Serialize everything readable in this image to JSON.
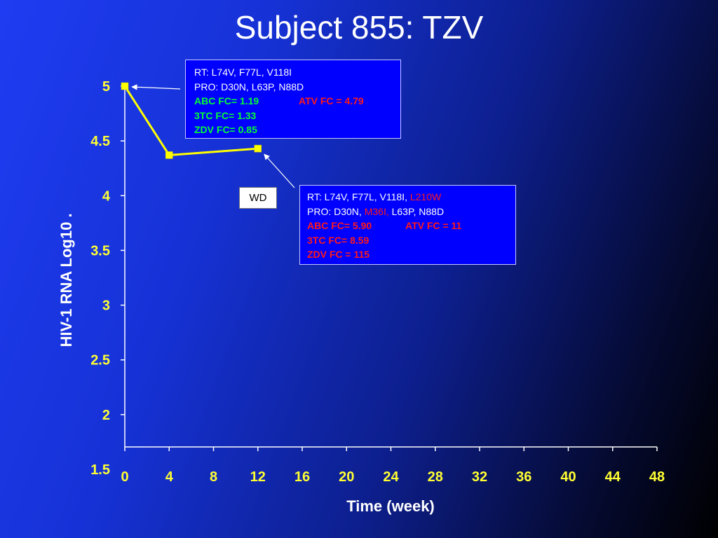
{
  "chart_data": {
    "type": "line",
    "title": "Subject 855: TZV",
    "xlabel": "Time (week)",
    "ylabel": "HIV-1 RNA Log10 .",
    "xlim": [
      0,
      48
    ],
    "ylim": [
      1.5,
      5
    ],
    "x_ticks": [
      0,
      4,
      8,
      12,
      16,
      20,
      24,
      28,
      32,
      36,
      40,
      44,
      48
    ],
    "y_ticks": [
      1.5,
      2,
      2.5,
      3,
      3.5,
      4,
      4.5,
      5
    ],
    "series": [
      {
        "name": "",
        "color": "#ffff00",
        "x": [
          0,
          4,
          12
        ],
        "y": [
          5.0,
          4.37,
          4.43
        ]
      }
    ],
    "legend": "none",
    "grid": false
  },
  "annotations": {
    "box1": {
      "rt": "RT:  L74V, F77L, V118I",
      "pro": "PRO:  D30N, L63P, N88D",
      "abc": "ABC FC= 1.19",
      "atv": "ATV  FC =  4.79",
      "tc3": "3TC  FC= 1.33",
      "zdv": "ZDV FC= 0.85"
    },
    "box2": {
      "rt_a": "RT:  L74V, F77L, V118I,",
      "rt_b": "L210W",
      "pro_a": "PRO:  D30N,",
      "pro_b": "M36I,",
      "pro_c": "L63P, N88D",
      "abc": "ABC  FC= 5.90",
      "atv": "ATV  FC = 11",
      "tc3": "3TC  FC=  8.59",
      "zdv": "ZDV  FC = 115"
    },
    "wd": "WD"
  },
  "colors": {
    "line": "#ffff00",
    "tick_labels": "#ffff33",
    "axis": "#ffffff",
    "green_text": "#00ff33",
    "red_text": "#ff1a1a"
  }
}
